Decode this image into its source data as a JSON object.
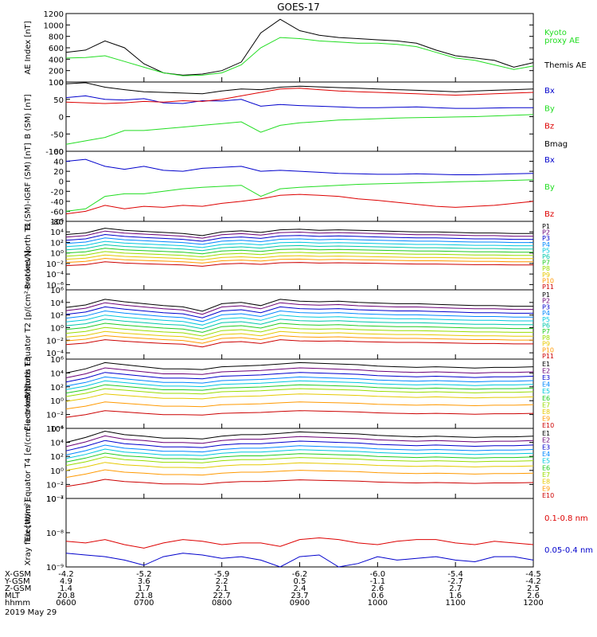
{
  "title": "GOES-17",
  "date": "2019 May 29",
  "colors": {
    "black": "#000000",
    "green": "#22dd22",
    "red": "#dd0000",
    "blue": "#0000cc",
    "p_channels": [
      "#000000",
      "#6a0077",
      "#0000cc",
      "#0088ff",
      "#00c8dd",
      "#00c8aa",
      "#22cc22",
      "#99dd00",
      "#e6c800",
      "#ff9900",
      "#cc0000"
    ],
    "e_channels": [
      "#000000",
      "#6a0077",
      "#0000cc",
      "#0088ff",
      "#00c8dd",
      "#22cc22",
      "#99dd00",
      "#e6c800",
      "#ff9900",
      "#cc0000"
    ]
  },
  "chart_data": {
    "type": "line",
    "x_ticks": [
      {
        "hhmm": "0600",
        "xgsm": "-4.2",
        "ygsm": "4.9",
        "zgsm": "1.4",
        "mlt": "20.8"
      },
      {
        "hhmm": "0700",
        "xgsm": "-5.2",
        "ygsm": "3.6",
        "zgsm": "1.7",
        "mlt": "21.8"
      },
      {
        "hhmm": "0800",
        "xgsm": "-5.9",
        "ygsm": "2.2",
        "zgsm": "2.1",
        "mlt": "22.7"
      },
      {
        "hhmm": "0900",
        "xgsm": "-6.2",
        "ygsm": "0.5",
        "zgsm": "2.4",
        "mlt": "23.7"
      },
      {
        "hhmm": "1000",
        "xgsm": "-6.0",
        "ygsm": "-1.1",
        "zgsm": "2.6",
        "mlt": "0.6"
      },
      {
        "hhmm": "1100",
        "xgsm": "-5.4",
        "ygsm": "-2.7",
        "zgsm": "2.7",
        "mlt": "1.6"
      },
      {
        "hhmm": "1200",
        "xgsm": "-4.5",
        "ygsm": "-4.2",
        "zgsm": "2.5",
        "mlt": "2.6"
      }
    ],
    "row_labels": [
      "X-GSM",
      "Y-GSM",
      "Z-GSM",
      "MLT",
      "hhmm"
    ],
    "x_hours": [
      6.0,
      6.25,
      6.5,
      6.75,
      7.0,
      7.25,
      7.5,
      7.75,
      8.0,
      8.25,
      8.5,
      8.75,
      9.0,
      9.25,
      9.5,
      9.75,
      10.0,
      10.25,
      10.5,
      10.75,
      11.0,
      11.25,
      11.5,
      11.75,
      12.0
    ],
    "panels": [
      {
        "id": "ae",
        "ylabel": "AE Index [nT]",
        "scale": "linear",
        "ylim": [
          0,
          1200
        ],
        "ticks": [
          0,
          200,
          400,
          600,
          800,
          1000,
          1200
        ],
        "tick_labels": [
          "0",
          "200",
          "400",
          "600",
          "800",
          "1000",
          "1200"
        ],
        "legend": [
          {
            "text": "Kyoto",
            "color": "green"
          },
          {
            "text": "proxy AE",
            "color": "green"
          },
          {
            "text": "Themis AE",
            "color": "black"
          }
        ],
        "series": [
          {
            "name": "Themis AE",
            "color": "black",
            "values": [
              520,
              560,
              720,
              600,
              320,
              160,
              120,
              140,
              200,
              350,
              860,
              1100,
              900,
              820,
              780,
              760,
              740,
              720,
              680,
              560,
              460,
              420,
              380,
              260,
              340
            ]
          },
          {
            "name": "Kyoto proxy AE",
            "color": "green",
            "values": [
              420,
              430,
              460,
              360,
              260,
              160,
              110,
              120,
              160,
              300,
              600,
              780,
              760,
              720,
              700,
              680,
              680,
              660,
              620,
              520,
              420,
              380,
              300,
              220,
              280
            ]
          }
        ]
      },
      {
        "id": "b",
        "ylabel": "B (SM) [nT]",
        "scale": "linear",
        "ylim": [
          -100,
          100
        ],
        "ticks": [
          -100,
          -50,
          0,
          50,
          100
        ],
        "tick_labels": [
          "-100",
          "-50",
          "0",
          "50",
          "100"
        ],
        "legend": [
          {
            "text": "Bx",
            "color": "blue"
          },
          {
            "text": "By",
            "color": "green"
          },
          {
            "text": "Bz",
            "color": "red"
          },
          {
            "text": "Bmag",
            "color": "black"
          }
        ],
        "series": [
          {
            "name": "Bmag",
            "color": "black",
            "values": [
              95,
              98,
              85,
              78,
              72,
              70,
              68,
              66,
              74,
              80,
              78,
              85,
              88,
              86,
              84,
              82,
              80,
              78,
              76,
              74,
              72,
              74,
              76,
              78,
              80
            ]
          },
          {
            "name": "Bx",
            "color": "blue",
            "values": [
              55,
              60,
              50,
              48,
              52,
              40,
              38,
              46,
              45,
              50,
              30,
              35,
              32,
              30,
              28,
              26,
              26,
              27,
              28,
              26,
              24,
              24,
              25,
              26,
              26
            ]
          },
          {
            "name": "Bz",
            "color": "red",
            "values": [
              42,
              40,
              38,
              40,
              44,
              42,
              46,
              44,
              50,
              60,
              70,
              80,
              82,
              78,
              74,
              72,
              70,
              68,
              66,
              64,
              62,
              64,
              66,
              68,
              70
            ]
          },
          {
            "name": "By",
            "color": "green",
            "values": [
              -80,
              -70,
              -60,
              -40,
              -40,
              -35,
              -30,
              -25,
              -20,
              -15,
              -45,
              -25,
              -18,
              -14,
              -10,
              -8,
              -6,
              -4,
              -3,
              -2,
              -1,
              0,
              2,
              4,
              6
            ]
          }
        ]
      },
      {
        "id": "bigrf",
        "ylabel": "B (SM)-IGRF (SM) [nT]",
        "scale": "linear",
        "ylim": [
          -80,
          60
        ],
        "ticks": [
          -80,
          -60,
          -40,
          -20,
          0,
          20,
          40,
          60
        ],
        "tick_labels": [
          "-80",
          "-60",
          "-40",
          "-20",
          "0",
          "20",
          "40",
          "60"
        ],
        "legend": [
          {
            "text": "Bx",
            "color": "blue"
          },
          {
            "text": "By",
            "color": "green"
          },
          {
            "text": "Bz",
            "color": "red"
          }
        ],
        "series": [
          {
            "name": "Bx",
            "color": "blue",
            "values": [
              40,
              44,
              30,
              24,
              30,
              22,
              20,
              26,
              28,
              30,
              20,
              22,
              20,
              18,
              16,
              15,
              14,
              14,
              15,
              14,
              13,
              13,
              14,
              15,
              16
            ]
          },
          {
            "name": "By",
            "color": "green",
            "values": [
              -60,
              -55,
              -30,
              -25,
              -25,
              -20,
              -15,
              -12,
              -10,
              -8,
              -30,
              -15,
              -12,
              -10,
              -8,
              -6,
              -5,
              -4,
              -3,
              -2,
              -1,
              0,
              1,
              2,
              3
            ]
          },
          {
            "name": "Bz",
            "color": "red",
            "values": [
              -65,
              -60,
              -48,
              -55,
              -50,
              -52,
              -48,
              -50,
              -44,
              -40,
              -35,
              -28,
              -26,
              -28,
              -30,
              -35,
              -38,
              -42,
              -46,
              -50,
              -52,
              -50,
              -48,
              -44,
              -40
            ]
          }
        ]
      },
      {
        "id": "pn",
        "ylabel": "Protons North T1",
        "scale": "log",
        "ylim": [
          -7,
          6
        ],
        "ticks": [
          -6,
          -4,
          -2,
          0,
          2,
          4,
          6
        ],
        "tick_labels": [
          "10⁻⁶",
          "10⁻⁴",
          "10⁻²",
          "10⁰",
          "10²",
          "10⁴",
          "10⁶"
        ],
        "legend_channels": [
          "P1",
          "P2",
          "P3",
          "P4",
          "P5",
          "P6",
          "P7",
          "P8",
          "P9",
          "P10",
          "P11"
        ],
        "channel_base": [
          3.5,
          3.0,
          2.4,
          1.8,
          1.2,
          0.6,
          0.0,
          -0.6,
          -1.2,
          -1.8,
          -2.4
        ],
        "profile": [
          0,
          0.3,
          1.2,
          0.8,
          0.6,
          0.4,
          0.2,
          -0.2,
          0.5,
          0.7,
          0.4,
          0.9,
          1.0,
          0.8,
          0.9,
          0.8,
          0.7,
          0.6,
          0.5,
          0.5,
          0.4,
          0.3,
          0.3,
          0.2,
          0.2
        ]
      },
      {
        "id": "pe",
        "ylabel": "Protons Equator T2 [p/(cm²-s-sr-keV)]",
        "scale": "log",
        "ylim": [
          -5,
          6
        ],
        "ticks": [
          -4,
          -2,
          0,
          2,
          4,
          6
        ],
        "tick_labels": [
          "10⁻⁴",
          "10⁻²",
          "10⁰",
          "10²",
          "10⁴",
          "10⁶"
        ],
        "legend_channels": [
          "P1",
          "P2",
          "P3",
          "P4",
          "P5",
          "P6",
          "P7",
          "P8",
          "P9",
          "P10",
          "P11"
        ],
        "channel_base": [
          3.2,
          2.7,
          2.1,
          1.5,
          0.9,
          0.3,
          -0.3,
          -0.9,
          -1.5,
          -2.1,
          -2.7
        ],
        "profile": [
          0,
          0.4,
          1.3,
          0.9,
          0.6,
          0.3,
          0.1,
          -0.6,
          0.6,
          0.8,
          0.3,
          1.3,
          1.0,
          0.9,
          1.0,
          0.8,
          0.7,
          0.6,
          0.6,
          0.5,
          0.4,
          0.3,
          0.3,
          0.2,
          0.2
        ]
      },
      {
        "id": "en",
        "ylabel": "Electrons North T3",
        "scale": "log",
        "ylim": [
          -4,
          6
        ],
        "ticks": [
          -4,
          -2,
          0,
          2,
          4,
          6
        ],
        "tick_labels": [
          "10⁻⁴",
          "10⁻²",
          "10⁰",
          "10²",
          "10⁴",
          "10⁶"
        ],
        "legend_channels": [
          "E1",
          "E2",
          "E3",
          "E4",
          "E5",
          "E6",
          "E7",
          "E8",
          "E9",
          "E10"
        ],
        "channel_base": [
          4.0,
          3.3,
          2.7,
          2.1,
          1.6,
          1.1,
          0.6,
          -0.1,
          -1.2,
          -2.4
        ],
        "profile": [
          0,
          0.6,
          1.5,
          1.2,
          0.9,
          0.6,
          0.6,
          0.5,
          0.9,
          1.0,
          1.1,
          1.3,
          1.5,
          1.4,
          1.3,
          1.2,
          1.0,
          0.9,
          0.8,
          0.9,
          0.8,
          0.7,
          0.8,
          0.8,
          0.9
        ]
      },
      {
        "id": "ee",
        "ylabel": "Electrons Equator T4 [e/(cm²-s-sr-keV)]",
        "scale": "log",
        "ylim": [
          -4,
          6
        ],
        "ticks": [
          -4,
          -2,
          0,
          2,
          4,
          6
        ],
        "tick_labels": [
          "10⁻⁴",
          "10⁻²",
          "10⁰",
          "10²",
          "10⁴",
          "10⁶"
        ],
        "legend_channels": [
          "E1",
          "E2",
          "E3",
          "E4",
          "E5",
          "E6",
          "E7",
          "E8",
          "E9",
          "E10"
        ],
        "channel_base": [
          4.0,
          3.4,
          2.8,
          2.2,
          1.7,
          1.2,
          0.7,
          0.0,
          -1.0,
          -2.3
        ],
        "profile": [
          0,
          0.7,
          1.6,
          1.1,
          0.9,
          0.6,
          0.6,
          0.5,
          0.9,
          1.1,
          1.1,
          1.3,
          1.5,
          1.4,
          1.3,
          1.2,
          1.0,
          0.9,
          0.8,
          0.9,
          0.8,
          0.7,
          0.8,
          0.8,
          0.9
        ]
      },
      {
        "id": "xray",
        "ylabel": "Xray flux [W/m²]",
        "scale": "log",
        "ylim": [
          -9,
          -7
        ],
        "ticks": [
          -9,
          -8,
          -7
        ],
        "tick_labels": [
          "10⁻⁹",
          "10⁻⁸",
          "10⁻⁷"
        ],
        "legend": [
          {
            "text": "0.1-0.8 nm",
            "color": "red"
          },
          {
            "text": "0.05-0.4 nm",
            "color": "blue"
          }
        ],
        "series": [
          {
            "name": "0.1-0.8 nm",
            "color": "red",
            "values": [
              -8.25,
              -8.3,
              -8.2,
              -8.35,
              -8.45,
              -8.3,
              -8.2,
              -8.25,
              -8.35,
              -8.3,
              -8.3,
              -8.4,
              -8.2,
              -8.15,
              -8.2,
              -8.3,
              -8.35,
              -8.25,
              -8.2,
              -8.2,
              -8.3,
              -8.35,
              -8.25,
              -8.3,
              -8.35
            ]
          },
          {
            "name": "0.05-0.4 nm",
            "color": "blue",
            "values": [
              -8.6,
              -8.65,
              -8.7,
              -8.8,
              -8.95,
              -8.7,
              -8.6,
              -8.65,
              -8.75,
              -8.7,
              -8.8,
              -9.0,
              -8.7,
              -8.65,
              -9.0,
              -8.9,
              -8.7,
              -8.8,
              -8.75,
              -8.7,
              -8.8,
              -8.85,
              -8.7,
              -8.7,
              -8.8
            ]
          }
        ]
      }
    ]
  }
}
